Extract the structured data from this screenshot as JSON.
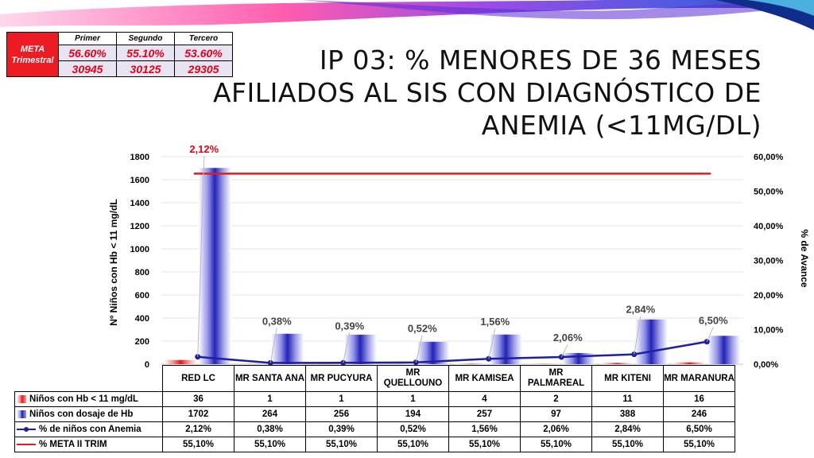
{
  "meta_table": {
    "label": "META Trimestral",
    "headers": [
      "Primer",
      "Segundo",
      "Tercero"
    ],
    "percentages": [
      "56.60%",
      "55.10%",
      "53.60%"
    ],
    "counts": [
      "30945",
      "30125",
      "29305"
    ]
  },
  "title": "IP 03: % MENORES DE 36 MESES AFILIADOS AL SIS CON DIAGNÓSTICO DE ANEMIA (<11MG/DL)",
  "colors": {
    "anemia_bar": "#e21b1b",
    "hb_bar": "#2323b8",
    "anemia_line": "#1f1f9f",
    "meta_line": "#e21b1b"
  },
  "chart_data": {
    "type": "bar",
    "categories": [
      "RED LC",
      "MR SANTA ANA",
      "MR PUCYURA",
      "MR QUELLOUNO",
      "MR KAMISEA",
      "MR PALMAREAL",
      "MR KITENI",
      "MR MARANURA"
    ],
    "series": [
      {
        "name": "Niños con Hb < 11 mg/dL",
        "type": "bar",
        "axis": "left",
        "values": [
          36,
          1,
          1,
          1,
          4,
          2,
          11,
          16
        ],
        "labels": [
          "36",
          "1",
          "1",
          "1",
          "4",
          "2",
          "11",
          "16"
        ]
      },
      {
        "name": "Niños con dosaje de Hb",
        "type": "bar",
        "axis": "left",
        "values": [
          1702,
          264,
          256,
          194,
          257,
          97,
          388,
          246
        ],
        "labels": [
          "1702",
          "264",
          "256",
          "194",
          "257",
          "97",
          "388",
          "246"
        ]
      },
      {
        "name": "% de niños con Anemia",
        "type": "line",
        "axis": "right",
        "values": [
          2.12,
          0.38,
          0.39,
          0.52,
          1.56,
          2.06,
          2.84,
          6.5
        ],
        "labels": [
          "2,12%",
          "0,38%",
          "0,39%",
          "0,52%",
          "1,56%",
          "2,06%",
          "2,84%",
          "6,50%"
        ]
      },
      {
        "name": "% META II TRIM",
        "type": "line",
        "axis": "right",
        "values": [
          55.1,
          55.1,
          55.1,
          55.1,
          55.1,
          55.1,
          55.1,
          55.1
        ],
        "labels": [
          "55,10%",
          "55,10%",
          "55,10%",
          "55,10%",
          "55,10%",
          "55,10%",
          "55,10%",
          "55,10%"
        ]
      }
    ],
    "point_labels": [
      "2,12%",
      "0,38%",
      "0,39%",
      "0,52%",
      "1,56%",
      "2,06%",
      "2,84%",
      "6,50%"
    ],
    "ylabel": "Nº Niños con Hb < 11 mg/dL",
    "y2label": "% de Avance",
    "ylim": [
      0,
      1800
    ],
    "y2lim": [
      0,
      60
    ],
    "yticks": [
      "0",
      "200",
      "400",
      "600",
      "800",
      "1000",
      "1200",
      "1400",
      "1600",
      "1800"
    ],
    "y2ticks": [
      "0,00%",
      "10,00%",
      "20,00%",
      "30,00%",
      "40,00%",
      "50,00%",
      "60,00%"
    ],
    "grid": true,
    "legend": "data-table"
  }
}
